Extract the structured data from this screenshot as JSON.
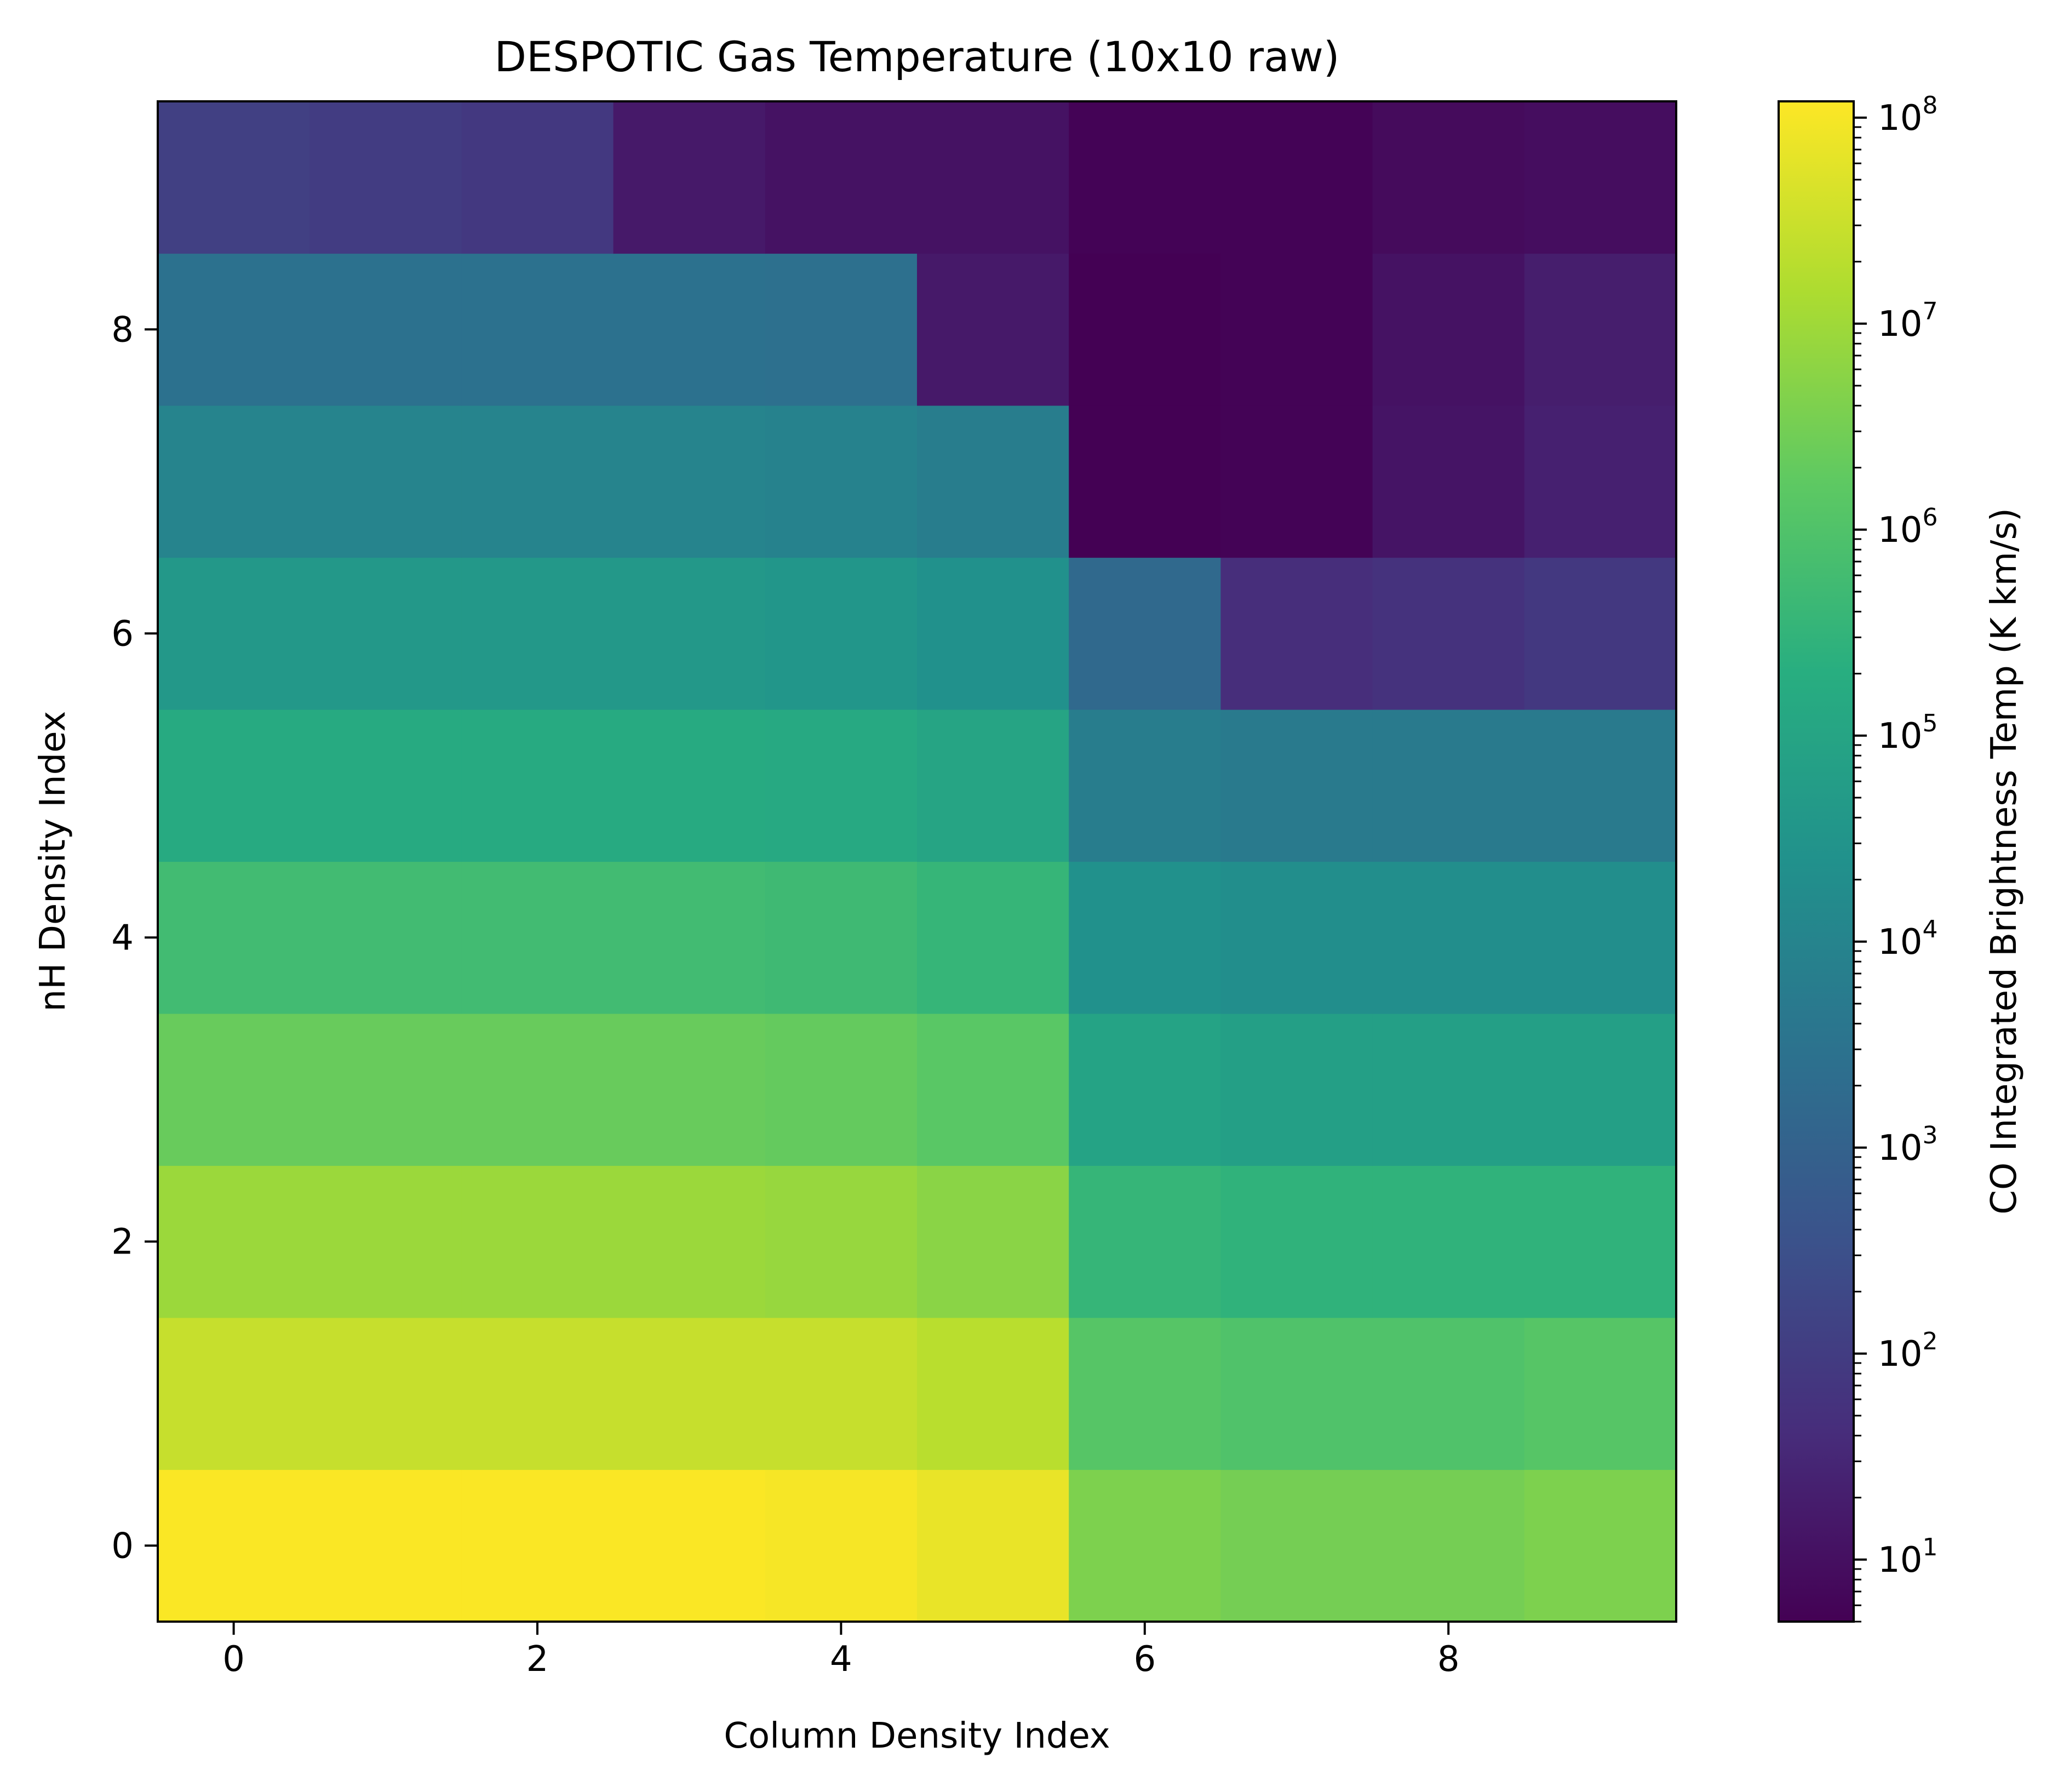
{
  "chart_data": {
    "type": "heatmap",
    "title": "DESPOTIC Gas Temperature (10x10 raw)",
    "xlabel": "Column Density Index",
    "ylabel": "nH Density Index",
    "colorbar_label": "CO Integrated Brightness Temp (K km/s)",
    "colormap": "viridis",
    "color_scale": "log",
    "x_index_range": [
      0,
      9
    ],
    "y_index_range": [
      0,
      9
    ],
    "y_origin": "bottom",
    "x_ticks": [
      0,
      2,
      4,
      6,
      8
    ],
    "y_ticks": [
      0,
      2,
      4,
      6,
      8
    ],
    "colorbar_range": [
      5,
      120000000
    ],
    "colorbar_ticks": [
      {
        "base": "10",
        "exp": "1",
        "value": 10
      },
      {
        "base": "10",
        "exp": "2",
        "value": 100
      },
      {
        "base": "10",
        "exp": "3",
        "value": 1000
      },
      {
        "base": "10",
        "exp": "4",
        "value": 10000
      },
      {
        "base": "10",
        "exp": "5",
        "value": 100000
      },
      {
        "base": "10",
        "exp": "6",
        "value": 1000000
      },
      {
        "base": "10",
        "exp": "7",
        "value": 10000000
      },
      {
        "base": "10",
        "exp": "8",
        "value": 100000000
      }
    ],
    "rows_log10": [
      [
        8.05,
        8.05,
        8.05,
        8.05,
        8.0,
        7.85,
        6.6,
        6.5,
        6.5,
        6.6
      ],
      [
        7.45,
        7.45,
        7.45,
        7.45,
        7.45,
        7.3,
        6.1,
        6.0,
        6.0,
        6.1
      ],
      [
        6.95,
        6.95,
        6.95,
        6.95,
        6.9,
        6.75,
        5.55,
        5.45,
        5.45,
        5.45
      ],
      [
        6.35,
        6.35,
        6.35,
        6.35,
        6.3,
        6.15,
        4.95,
        4.85,
        4.85,
        4.85
      ],
      [
        5.75,
        5.75,
        5.75,
        5.75,
        5.7,
        5.55,
        4.4,
        4.3,
        4.3,
        4.3
      ],
      [
        5.2,
        5.2,
        5.2,
        5.2,
        5.15,
        5.0,
        3.8,
        3.7,
        3.7,
        3.7
      ],
      [
        4.6,
        4.6,
        4.6,
        4.6,
        4.55,
        4.4,
        3.2,
        1.65,
        1.75,
        1.9
      ],
      [
        4.0,
        4.0,
        4.0,
        4.0,
        3.95,
        3.8,
        0.7,
        0.75,
        1.1,
        1.35
      ],
      [
        3.45,
        3.45,
        3.45,
        3.45,
        3.4,
        1.2,
        0.7,
        0.75,
        1.05,
        1.3
      ],
      [
        2.1,
        2.0,
        1.9,
        1.2,
        1.05,
        1.05,
        0.75,
        0.75,
        0.9,
        0.95
      ]
    ]
  }
}
